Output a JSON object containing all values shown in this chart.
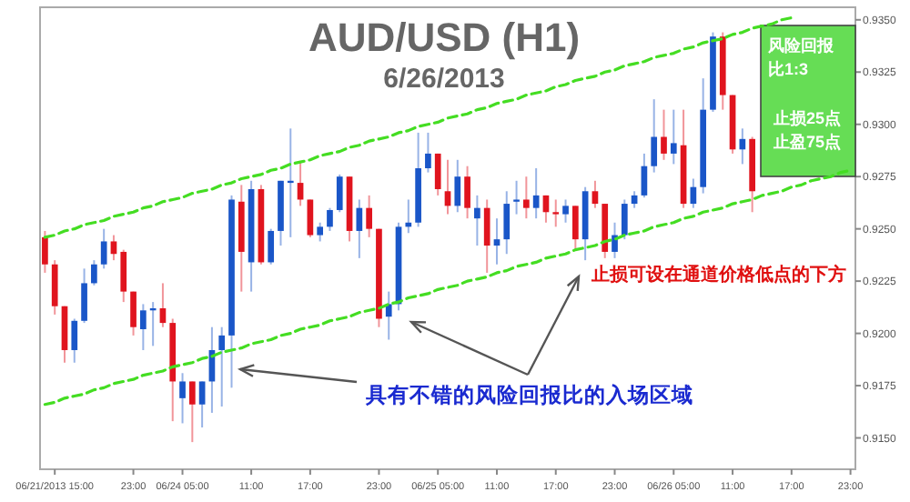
{
  "chart_data": {
    "type": "candlestick",
    "title": "AUD/USD (H1)",
    "subtitle": "6/26/2013",
    "categories": [
      null,
      "06/21/2013 15:00",
      null,
      null,
      null,
      null,
      null,
      null,
      null,
      "23:00",
      null,
      null,
      null,
      null,
      "06/24 05:00",
      null,
      null,
      null,
      null,
      null,
      null,
      "11:00",
      null,
      null,
      null,
      null,
      null,
      "17:00",
      null,
      null,
      null,
      null,
      null,
      null,
      "23:00",
      null,
      null,
      null,
      null,
      null,
      "06/25 05:00",
      null,
      null,
      null,
      null,
      null,
      "11:00",
      null,
      null,
      null,
      null,
      null,
      "17:00",
      null,
      null,
      null,
      null,
      null,
      "23:00",
      null,
      null,
      null,
      null,
      null,
      "06/26 05:00",
      null,
      null,
      null,
      null,
      null,
      "11:00",
      null,
      null,
      null,
      null,
      null,
      "17:00",
      null,
      null,
      null,
      null,
      null,
      "23:00"
    ],
    "ohlc": [
      [
        0.9246,
        0.9249,
        0.9229,
        0.9233
      ],
      [
        0.9233,
        0.9235,
        0.9209,
        0.9213
      ],
      [
        0.9213,
        0.9213,
        0.9186,
        0.9192
      ],
      [
        0.9192,
        0.9207,
        0.9186,
        0.9206
      ],
      [
        0.9206,
        0.9231,
        0.9205,
        0.9224
      ],
      [
        0.9224,
        0.9235,
        0.9223,
        0.9233
      ],
      [
        0.9233,
        0.925,
        0.9231,
        0.9244
      ],
      [
        0.9244,
        0.9247,
        0.9235,
        0.9238
      ],
      [
        0.9239,
        0.924,
        0.9215,
        0.922
      ],
      [
        0.922,
        0.922,
        0.9199,
        0.9203
      ],
      [
        0.9202,
        0.9214,
        0.9192,
        0.9211
      ],
      [
        0.9211,
        0.9215,
        0.9194,
        0.9212
      ],
      [
        0.9212,
        0.9224,
        0.9203,
        0.9205
      ],
      [
        0.9205,
        0.9207,
        0.9158,
        0.9177
      ],
      [
        0.9169,
        0.9181,
        0.9157,
        0.9177
      ],
      [
        0.9177,
        0.9177,
        0.9148,
        0.9166
      ],
      [
        0.9166,
        0.9177,
        0.9155,
        0.9177
      ],
      [
        0.9177,
        0.9203,
        0.9162,
        0.9192
      ],
      [
        0.9192,
        0.9203,
        0.9165,
        0.9199
      ],
      [
        0.9199,
        0.9266,
        0.9174,
        0.9264
      ],
      [
        0.9263,
        0.9271,
        0.922,
        0.9239
      ],
      [
        0.9234,
        0.9273,
        0.922,
        0.9269
      ],
      [
        0.9269,
        0.9271,
        0.9233,
        0.9234
      ],
      [
        0.9234,
        0.925,
        0.9233,
        0.9249
      ],
      [
        0.9249,
        0.9273,
        0.9242,
        0.9273
      ],
      [
        0.9273,
        0.9298,
        0.9246,
        0.9272
      ],
      [
        0.9272,
        0.9282,
        0.9261,
        0.9264
      ],
      [
        0.9264,
        0.9264,
        0.9246,
        0.9247
      ],
      [
        0.9247,
        0.9253,
        0.9244,
        0.9251
      ],
      [
        0.9251,
        0.926,
        0.9249,
        0.9259
      ],
      [
        0.9259,
        0.9276,
        0.9258,
        0.9275
      ],
      [
        0.9275,
        0.9275,
        0.9244,
        0.9249
      ],
      [
        0.9249,
        0.9264,
        0.9236,
        0.926
      ],
      [
        0.926,
        0.9266,
        0.9246,
        0.925
      ],
      [
        0.925,
        0.925,
        0.9203,
        0.9207
      ],
      [
        0.9208,
        0.922,
        0.9197,
        0.9214
      ],
      [
        0.9214,
        0.9253,
        0.9211,
        0.9251
      ],
      [
        0.9251,
        0.9264,
        0.9248,
        0.9253
      ],
      [
        0.9253,
        0.9296,
        0.9251,
        0.9279
      ],
      [
        0.9279,
        0.9296,
        0.9277,
        0.9286
      ],
      [
        0.9286,
        0.9286,
        0.9266,
        0.9269
      ],
      [
        0.9268,
        0.9283,
        0.9257,
        0.9261
      ],
      [
        0.9261,
        0.9283,
        0.9258,
        0.9275
      ],
      [
        0.9275,
        0.928,
        0.9255,
        0.926
      ],
      [
        0.9255,
        0.9266,
        0.9242,
        0.926
      ],
      [
        0.926,
        0.9264,
        0.9229,
        0.9242
      ],
      [
        0.9242,
        0.9255,
        0.9233,
        0.9245
      ],
      [
        0.9245,
        0.9268,
        0.9238,
        0.9262
      ],
      [
        0.9263,
        0.9273,
        0.9257,
        0.9264
      ],
      [
        0.9264,
        0.9275,
        0.9255,
        0.926
      ],
      [
        0.926,
        0.9279,
        0.9255,
        0.9266
      ],
      [
        0.9266,
        0.9266,
        0.9253,
        0.9258
      ],
      [
        0.9258,
        0.9264,
        0.9251,
        0.9257
      ],
      [
        0.9257,
        0.9264,
        0.9253,
        0.9261
      ],
      [
        0.9261,
        0.9261,
        0.924,
        0.9245
      ],
      [
        0.9245,
        0.927,
        0.9235,
        0.9268
      ],
      [
        0.9268,
        0.9273,
        0.926,
        0.9262
      ],
      [
        0.9262,
        0.9262,
        0.9236,
        0.9239
      ],
      [
        0.9239,
        0.9253,
        0.9236,
        0.9247
      ],
      [
        0.9247,
        0.9264,
        0.9245,
        0.9262
      ],
      [
        0.9262,
        0.9268,
        0.926,
        0.9266
      ],
      [
        0.9266,
        0.9286,
        0.9265,
        0.928
      ],
      [
        0.928,
        0.9312,
        0.9277,
        0.9294
      ],
      [
        0.9294,
        0.9307,
        0.9283,
        0.9286
      ],
      [
        0.9286,
        0.9307,
        0.9281,
        0.9291
      ],
      [
        0.929,
        0.9307,
        0.926,
        0.9262
      ],
      [
        0.9262,
        0.9274,
        0.926,
        0.927
      ],
      [
        0.927,
        0.9322,
        0.9267,
        0.9307
      ],
      [
        0.9307,
        0.9344,
        0.9306,
        0.9342
      ],
      [
        0.9342,
        0.9344,
        0.9307,
        0.9314
      ],
      [
        0.9314,
        0.9314,
        0.9286,
        0.9288
      ],
      [
        0.9288,
        0.9298,
        0.9281,
        0.9293
      ],
      [
        0.9293,
        0.9294,
        0.9258,
        0.9268
      ],
      null,
      null,
      null,
      null,
      null,
      null,
      null,
      null,
      null,
      null
    ],
    "colors": [
      "#e0141e",
      "#e0141e",
      "#e0141e",
      "#1a56c8",
      "#1a56c8",
      "#1a56c8",
      "#1a56c8",
      "#e0141e",
      "#e0141e",
      "#e0141e",
      "#1a56c8",
      "#1a56c8",
      "#e0141e",
      "#e0141e",
      "#1a56c8",
      "#e0141e",
      "#1a56c8",
      "#1a56c8",
      "#1a56c8",
      "#1a56c8",
      "#e0141e",
      "#1a56c8",
      "#e0141e",
      "#1a56c8",
      "#1a56c8",
      "#1a56c8",
      "#e0141e",
      "#e0141e",
      "#1a56c8",
      "#1a56c8",
      "#1a56c8",
      "#e0141e",
      "#1a56c8",
      "#e0141e",
      "#e0141e",
      "#1a56c8",
      "#1a56c8",
      "#1a56c8",
      "#1a56c8",
      "#1a56c8",
      "#e0141e",
      "#e0141e",
      "#1a56c8",
      "#e0141e",
      "#1a56c8",
      "#e0141e",
      "#1a56c8",
      "#1a56c8",
      "#1a56c8",
      "#e0141e",
      "#1a56c8",
      "#e0141e",
      "#e0141e",
      "#1a56c8",
      "#e0141e",
      "#1a56c8",
      "#e0141e",
      "#e0141e",
      "#1a56c8",
      "#1a56c8",
      "#1a56c8",
      "#1a56c8",
      "#1a56c8",
      "#e0141e",
      "#1a56c8",
      "#e0141e",
      "#1a56c8",
      "#1a56c8",
      "#1a56c8",
      "#e0141e",
      "#e0141e",
      "#1a56c8",
      "#e0141e",
      null,
      null,
      null,
      null,
      null,
      null,
      null,
      null,
      null,
      null
    ],
    "series": [
      {
        "type": "line",
        "values": [
          0.9246,
          0.9247,
          0.9249,
          0.925,
          0.9252,
          0.9253,
          0.9254,
          0.9256,
          0.9257,
          0.9258,
          0.926,
          0.9261,
          0.9263,
          0.9264,
          0.9265,
          0.9267,
          0.9268,
          0.9269,
          0.9271,
          0.9272,
          0.9274,
          0.9275,
          0.9276,
          0.9278,
          0.9279,
          0.9281,
          0.9282,
          0.9283,
          0.9285,
          0.9286,
          0.9287,
          0.9289,
          0.929,
          0.9292,
          0.9293,
          0.9294,
          0.9296,
          0.9297,
          0.9299,
          0.93,
          0.9301,
          0.9303,
          0.9304,
          0.9305,
          0.9307,
          0.9308,
          0.931,
          0.9311,
          0.9312,
          0.9314,
          0.9315,
          0.9316,
          0.9318,
          0.9319,
          0.9321,
          0.9322,
          0.9323,
          0.9325,
          0.9326,
          0.9328,
          0.9329,
          0.933,
          0.9332,
          0.9333,
          0.9334,
          0.9336,
          0.9337,
          0.9339,
          0.934,
          0.9341,
          0.9343,
          0.9344,
          0.9346,
          0.9347,
          0.9348,
          0.935,
          0.9351,
          null,
          null,
          null,
          null,
          null,
          null
        ],
        "color": "#44dd22",
        "line_style": "dashed"
      },
      {
        "type": "line",
        "values": [
          0.9166,
          0.9167,
          0.9169,
          0.917,
          0.9171,
          0.9173,
          0.9174,
          0.9176,
          0.9177,
          0.9178,
          0.918,
          0.9181,
          0.9182,
          0.9184,
          0.9185,
          0.9186,
          0.9188,
          0.9189,
          0.9191,
          0.9192,
          0.9193,
          0.9195,
          0.9196,
          0.9197,
          0.9199,
          0.92,
          0.9202,
          0.9203,
          0.9204,
          0.9206,
          0.9207,
          0.9208,
          0.921,
          0.9211,
          0.9212,
          0.9214,
          0.9215,
          0.9217,
          0.9218,
          0.9219,
          0.9221,
          0.9222,
          0.9223,
          0.9225,
          0.9226,
          0.9227,
          0.9229,
          0.923,
          0.9232,
          0.9233,
          0.9234,
          0.9236,
          0.9237,
          0.9238,
          0.924,
          0.9241,
          0.9242,
          0.9244,
          0.9245,
          0.9247,
          0.9248,
          0.9249,
          0.9251,
          0.9252,
          0.9253,
          0.9255,
          0.9256,
          0.9258,
          0.9259,
          0.926,
          0.9262,
          0.9263,
          0.9264,
          0.9266,
          0.9267,
          0.9268,
          0.927,
          0.9271,
          0.9273,
          0.9274,
          0.9275,
          0.9277,
          0.9278
        ],
        "color": "#44dd22",
        "line_style": "dashed"
      }
    ],
    "ylim": [
      0.9135,
      0.9356
    ],
    "yticks": [
      {
        "value": 0.915,
        "label": "0.9150"
      },
      {
        "value": 0.9175,
        "label": "0.9175"
      },
      {
        "value": 0.92,
        "label": "0.9200"
      },
      {
        "value": 0.9225,
        "label": "0.9225"
      },
      {
        "value": 0.925,
        "label": "0.9250"
      },
      {
        "value": 0.9275,
        "label": "0.9275"
      },
      {
        "value": 0.93,
        "label": "0.9300"
      },
      {
        "value": 0.9325,
        "label": "0.9325"
      },
      {
        "value": 0.935,
        "label": "0.9350"
      }
    ],
    "annotations": [
      "风险回报比1:3",
      "止损25点",
      "止盈75点",
      "止损可设在通道价格低点的下方",
      "具有不错的风险回报比的入场区域"
    ]
  }
}
